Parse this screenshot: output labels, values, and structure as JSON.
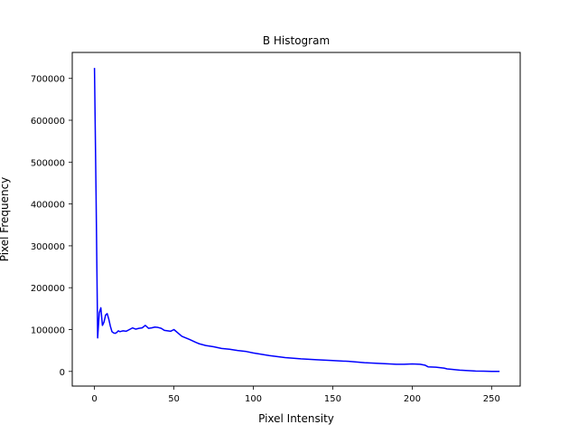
{
  "chart_data": {
    "type": "line",
    "title": "B Histogram",
    "xlabel": "Pixel Intensity",
    "ylabel": "Pixel Frequency",
    "xlim": [
      -14,
      268
    ],
    "ylim": [
      -35000,
      762000
    ],
    "xticks": [
      0,
      50,
      100,
      150,
      200,
      250
    ],
    "yticks": [
      0,
      100000,
      200000,
      300000,
      400000,
      500000,
      600000,
      700000
    ],
    "series": [
      {
        "name": "B",
        "color": "#0000ff",
        "x": [
          0,
          1,
          2,
          3,
          4,
          5,
          6,
          7,
          8,
          9,
          10,
          11,
          12,
          13,
          14,
          15,
          16,
          18,
          20,
          22,
          24,
          26,
          28,
          30,
          32,
          34,
          36,
          38,
          40,
          42,
          44,
          46,
          48,
          50,
          55,
          60,
          64,
          66,
          70,
          75,
          80,
          85,
          90,
          95,
          100,
          110,
          120,
          130,
          140,
          150,
          160,
          170,
          180,
          190,
          195,
          200,
          205,
          208,
          210,
          215,
          220,
          222,
          225,
          230,
          235,
          240,
          245,
          250,
          255
        ],
        "values": [
          725000,
          420000,
          80000,
          140000,
          152000,
          110000,
          118000,
          135000,
          138000,
          125000,
          108000,
          95000,
          92000,
          91000,
          93000,
          97000,
          95000,
          97000,
          96000,
          100000,
          104000,
          101000,
          103000,
          104000,
          110000,
          103000,
          104000,
          106000,
          105000,
          103000,
          98000,
          97000,
          96000,
          100000,
          84000,
          76000,
          69000,
          66000,
          62000,
          59000,
          55000,
          53000,
          50000,
          48000,
          44000,
          38000,
          33000,
          30000,
          28000,
          26000,
          24000,
          21000,
          19000,
          17000,
          17000,
          18000,
          17000,
          15000,
          11000,
          10000,
          8000,
          6000,
          5000,
          3000,
          2000,
          1000,
          500,
          0,
          0
        ]
      }
    ]
  }
}
